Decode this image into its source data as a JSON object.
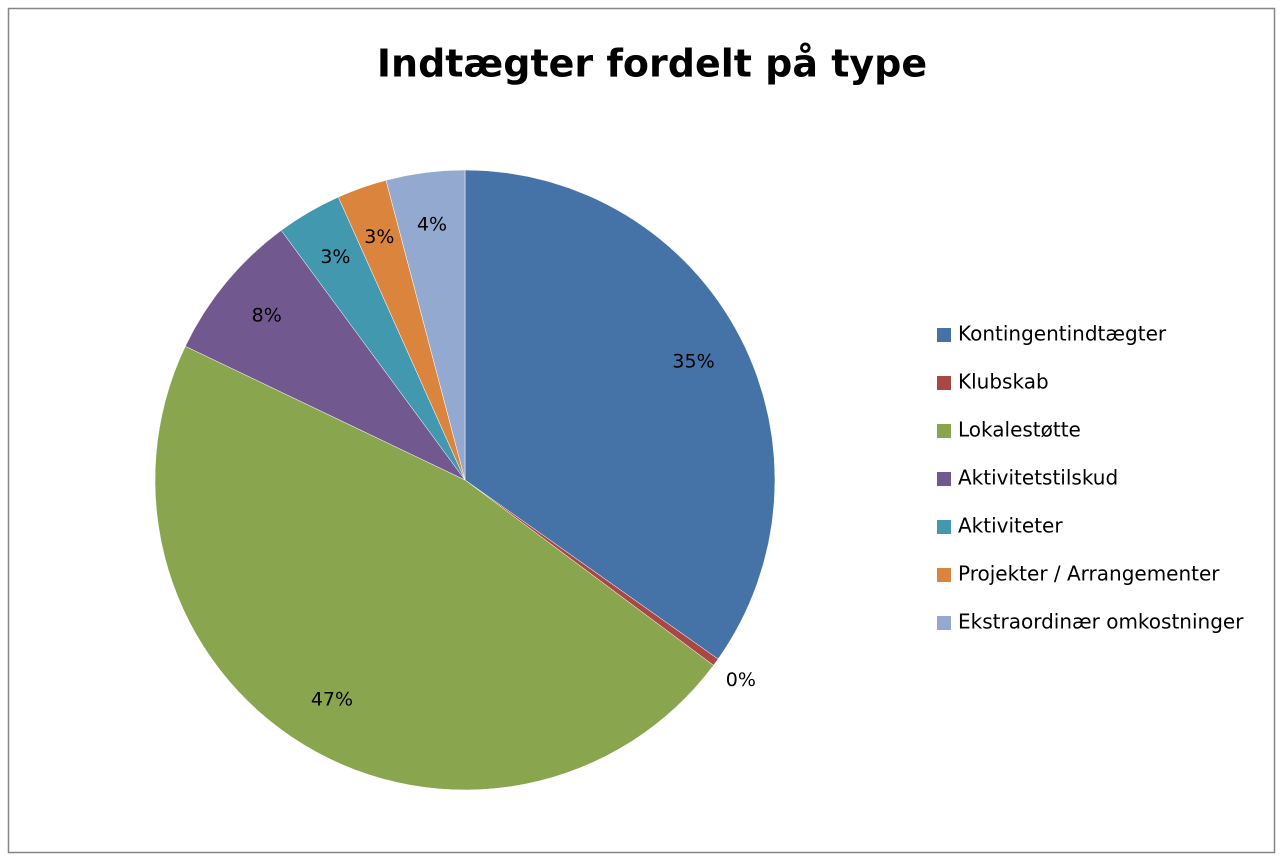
{
  "chart_data": {
    "type": "pie",
    "title": "Indtægter fordelt på type",
    "categories": [
      "Kontingentindtægter",
      "Klubskab",
      "Lokalestøtte",
      "Aktivitetstilskud",
      "Aktiviteter",
      "Projekter / Arrangementer",
      "Ekstraordinær omkostninger"
    ],
    "values": [
      34.8,
      0.4,
      46.9,
      7.8,
      3.4,
      2.6,
      4.1
    ],
    "value_labels": [
      "35%",
      "0%",
      "47%",
      "8%",
      "3%",
      "3%",
      "4%"
    ],
    "colors": [
      "#4572a7",
      "#aa4643",
      "#89a54e",
      "#71588f",
      "#4198af",
      "#db843d",
      "#93a9cf"
    ],
    "legend": "right"
  }
}
